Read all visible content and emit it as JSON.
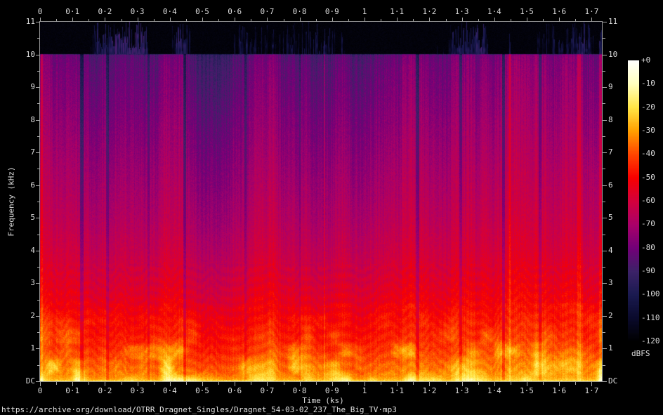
{
  "chart_data": {
    "type": "heatmap",
    "subtype": "audio-spectrogram",
    "x_axis": {
      "title": "Time (ks)",
      "max_ks": 1.7316,
      "major_step_ks": 0.1,
      "minor_step_ks": 0.05,
      "tick_labels": [
        "0",
        "0·1",
        "0·2",
        "0·3",
        "0·4",
        "0·5",
        "0·6",
        "0·7",
        "0·8",
        "0·9",
        "1",
        "1·1",
        "1·2",
        "1·3",
        "1·4",
        "1·5",
        "1·6",
        "1·7"
      ]
    },
    "y_axis": {
      "title": "Frequency (kHz)",
      "max_khz": 11,
      "major_step_khz": 1,
      "minor_step_khz": 0.5,
      "tick_labels": [
        "11",
        "10",
        "9",
        "8",
        "7",
        "6",
        "5",
        "4",
        "3",
        "2",
        "1",
        "DC"
      ]
    },
    "colorbar": {
      "label": "dBFS",
      "max_db": 0,
      "min_db": -120,
      "tick_step_db": 10,
      "tick_labels": [
        "+0",
        "-10",
        "-20",
        "-30",
        "-40",
        "-50",
        "-60",
        "-70",
        "-80",
        "-90",
        "-100",
        "-110",
        "-120"
      ],
      "stops": [
        {
          "db": 0,
          "rgb": [
            255,
            255,
            255
          ]
        },
        {
          "db": -10,
          "rgb": [
            255,
            255,
            190
          ]
        },
        {
          "db": -20,
          "rgb": [
            255,
            230,
            70
          ]
        },
        {
          "db": -30,
          "rgb": [
            255,
            160,
            0
          ]
        },
        {
          "db": -40,
          "rgb": [
            255,
            70,
            0
          ]
        },
        {
          "db": -50,
          "rgb": [
            248,
            0,
            0
          ]
        },
        {
          "db": -60,
          "rgb": [
            212,
            0,
            60
          ]
        },
        {
          "db": -70,
          "rgb": [
            170,
            0,
            105
          ]
        },
        {
          "db": -80,
          "rgb": [
            115,
            0,
            120
          ]
        },
        {
          "db": -90,
          "rgb": [
            60,
            34,
            104
          ]
        },
        {
          "db": -100,
          "rgb": [
            26,
            26,
            80
          ]
        },
        {
          "db": -110,
          "rgb": [
            10,
            10,
            44
          ]
        },
        {
          "db": -120,
          "rgb": [
            0,
            0,
            0
          ]
        }
      ]
    },
    "spectral_profile_dbfs": [
      {
        "khz": 0.0,
        "db": -21
      },
      {
        "khz": 0.06,
        "db": -26
      },
      {
        "khz": 0.15,
        "db": -30
      },
      {
        "khz": 0.35,
        "db": -33
      },
      {
        "khz": 0.6,
        "db": -36
      },
      {
        "khz": 1.0,
        "db": -41
      },
      {
        "khz": 1.5,
        "db": -45
      },
      {
        "khz": 2.0,
        "db": -49
      },
      {
        "khz": 2.5,
        "db": -52
      },
      {
        "khz": 3.0,
        "db": -55
      },
      {
        "khz": 4.0,
        "db": -60
      },
      {
        "khz": 5.0,
        "db": -64
      },
      {
        "khz": 6.0,
        "db": -67
      },
      {
        "khz": 7.0,
        "db": -70
      },
      {
        "khz": 8.0,
        "db": -73
      },
      {
        "khz": 9.0,
        "db": -76
      },
      {
        "khz": 9.7,
        "db": -78
      },
      {
        "khz": 10.0,
        "db": -80
      },
      {
        "khz": 10.06,
        "db": -116
      },
      {
        "khz": 11.0,
        "db": -118
      }
    ],
    "events": {
      "silences_ks": [
        {
          "t": 0.128,
          "width": 0.01,
          "depth_db": 16
        },
        {
          "t": 0.206,
          "width": 0.008,
          "depth_db": 14
        },
        {
          "t": 0.333,
          "width": 0.006,
          "depth_db": 10
        },
        {
          "t": 0.445,
          "width": 0.01,
          "depth_db": 15
        },
        {
          "t": 0.632,
          "width": 0.008,
          "depth_db": 12
        },
        {
          "t": 0.8,
          "width": 0.006,
          "depth_db": 10
        },
        {
          "t": 1.163,
          "width": 0.01,
          "depth_db": 16
        },
        {
          "t": 1.296,
          "width": 0.008,
          "depth_db": 13
        },
        {
          "t": 1.428,
          "width": 0.008,
          "depth_db": 14
        },
        {
          "t": 1.54,
          "width": 0.008,
          "depth_db": 13
        }
      ],
      "loud_bursts_ks": [
        {
          "t": 0.004,
          "width": 0.006,
          "boost_db": 8
        },
        {
          "t": 0.875,
          "width": 0.004,
          "boost_db": 9
        },
        {
          "t": 1.447,
          "width": 0.006,
          "boost_db": 10
        },
        {
          "t": 1.66,
          "width": 0.01,
          "boost_db": 8
        },
        {
          "t": 1.726,
          "width": 0.01,
          "boost_db": 10
        }
      ],
      "lowpass_cutoff_khz": 10.0
    },
    "footer_url": "https://archive·org/download/OTRR_Dragnet_Singles/Dragnet_54-03-02_237_The_Big_TV·mp3"
  }
}
